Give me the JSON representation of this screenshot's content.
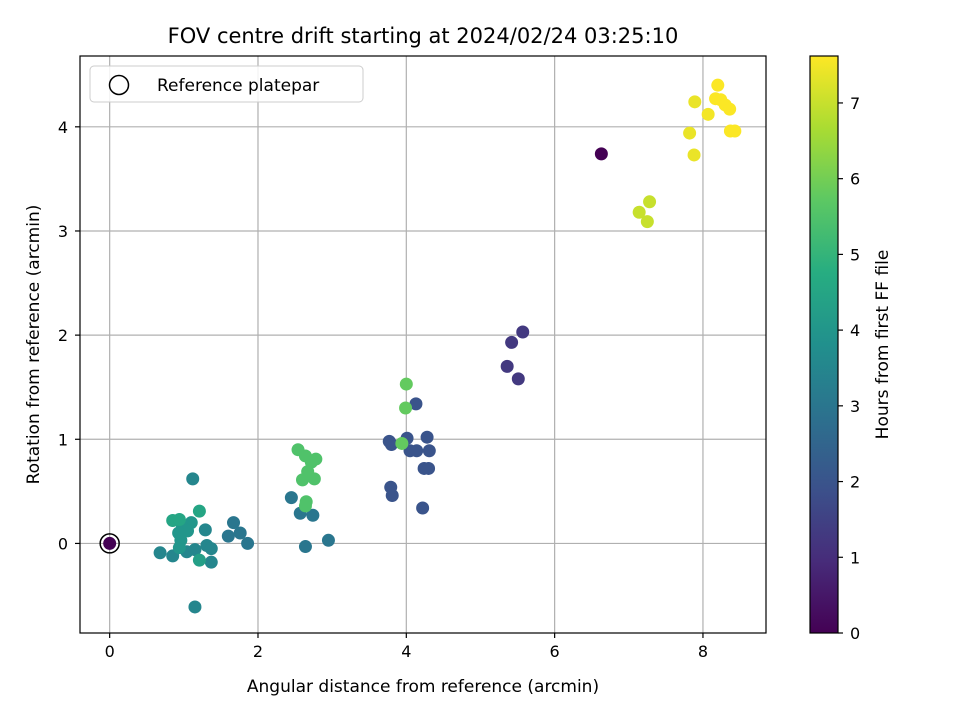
{
  "chart_data": {
    "type": "scatter",
    "title": "FOV centre drift starting at 2024/02/24 03:25:10",
    "xlabel": "Angular distance from reference (arcmin)",
    "ylabel": "Rotation from reference (arcmin)",
    "xlim": [
      -0.4,
      8.85
    ],
    "ylim": [
      -0.86,
      4.68
    ],
    "xticks": [
      0,
      2,
      4,
      6,
      8
    ],
    "yticks": [
      0,
      1,
      2,
      3,
      4
    ],
    "grid": true,
    "legend": {
      "position": "top-left",
      "entries": [
        "Reference platepar"
      ]
    },
    "colormap": "viridis",
    "colorbar": {
      "label": "Hours from first FF file",
      "range": [
        0,
        7.62
      ],
      "ticks": [
        0,
        1,
        2,
        3,
        4,
        5,
        6,
        7
      ]
    },
    "reference_point": {
      "x": 0,
      "y": 0,
      "label": "Reference platepar"
    },
    "points": [
      {
        "x": 0.0,
        "y": 0.0,
        "c": 0.0
      },
      {
        "x": 6.63,
        "y": 3.74,
        "c": 0.0
      },
      {
        "x": 5.57,
        "y": 2.03,
        "c": 1.3
      },
      {
        "x": 5.42,
        "y": 1.93,
        "c": 1.3
      },
      {
        "x": 5.36,
        "y": 1.7,
        "c": 1.3
      },
      {
        "x": 5.51,
        "y": 1.58,
        "c": 1.3
      },
      {
        "x": 4.13,
        "y": 1.34,
        "c": 2.0
      },
      {
        "x": 4.28,
        "y": 1.02,
        "c": 2.0
      },
      {
        "x": 4.01,
        "y": 1.01,
        "c": 2.0
      },
      {
        "x": 3.77,
        "y": 0.98,
        "c": 2.0
      },
      {
        "x": 3.8,
        "y": 0.95,
        "c": 2.0
      },
      {
        "x": 4.05,
        "y": 0.89,
        "c": 2.0
      },
      {
        "x": 4.14,
        "y": 0.89,
        "c": 2.0
      },
      {
        "x": 4.31,
        "y": 0.89,
        "c": 2.0
      },
      {
        "x": 4.24,
        "y": 0.72,
        "c": 2.0
      },
      {
        "x": 4.3,
        "y": 0.72,
        "c": 2.0
      },
      {
        "x": 3.79,
        "y": 0.54,
        "c": 2.0
      },
      {
        "x": 3.81,
        "y": 0.46,
        "c": 2.0
      },
      {
        "x": 4.22,
        "y": 0.34,
        "c": 2.0
      },
      {
        "x": 2.45,
        "y": 0.44,
        "c": 3.0
      },
      {
        "x": 2.57,
        "y": 0.29,
        "c": 3.0
      },
      {
        "x": 2.74,
        "y": 0.27,
        "c": 3.0
      },
      {
        "x": 2.64,
        "y": -0.03,
        "c": 3.0
      },
      {
        "x": 2.95,
        "y": 0.03,
        "c": 3.0
      },
      {
        "x": 1.67,
        "y": 0.2,
        "c": 3.0
      },
      {
        "x": 1.76,
        "y": 0.1,
        "c": 3.0
      },
      {
        "x": 1.6,
        "y": 0.07,
        "c": 3.0
      },
      {
        "x": 1.86,
        "y": 0.0,
        "c": 3.0
      },
      {
        "x": 1.12,
        "y": 0.62,
        "c": 3.5
      },
      {
        "x": 1.29,
        "y": 0.13,
        "c": 3.5
      },
      {
        "x": 0.68,
        "y": -0.09,
        "c": 3.5
      },
      {
        "x": 0.85,
        "y": -0.12,
        "c": 3.5
      },
      {
        "x": 1.04,
        "y": -0.08,
        "c": 3.5
      },
      {
        "x": 1.15,
        "y": -0.06,
        "c": 3.5
      },
      {
        "x": 1.31,
        "y": -0.02,
        "c": 3.5
      },
      {
        "x": 1.37,
        "y": -0.05,
        "c": 3.5
      },
      {
        "x": 1.37,
        "y": -0.18,
        "c": 3.5
      },
      {
        "x": 1.15,
        "y": -0.61,
        "c": 3.5
      },
      {
        "x": 1.1,
        "y": 0.2,
        "c": 4.0
      },
      {
        "x": 0.98,
        "y": 0.15,
        "c": 4.0
      },
      {
        "x": 1.05,
        "y": 0.12,
        "c": 4.0
      },
      {
        "x": 0.93,
        "y": 0.1,
        "c": 4.0
      },
      {
        "x": 0.96,
        "y": 0.03,
        "c": 4.0
      },
      {
        "x": 0.94,
        "y": -0.04,
        "c": 4.0
      },
      {
        "x": 1.21,
        "y": -0.16,
        "c": 4.3
      },
      {
        "x": 1.21,
        "y": 0.31,
        "c": 4.5
      },
      {
        "x": 0.85,
        "y": 0.22,
        "c": 4.5
      },
      {
        "x": 0.94,
        "y": 0.23,
        "c": 4.5
      },
      {
        "x": 2.54,
        "y": 0.9,
        "c": 5.5
      },
      {
        "x": 2.64,
        "y": 0.84,
        "c": 5.5
      },
      {
        "x": 2.72,
        "y": 0.78,
        "c": 5.5
      },
      {
        "x": 2.78,
        "y": 0.81,
        "c": 5.5
      },
      {
        "x": 2.67,
        "y": 0.69,
        "c": 5.5
      },
      {
        "x": 2.6,
        "y": 0.61,
        "c": 5.5
      },
      {
        "x": 2.76,
        "y": 0.62,
        "c": 5.5
      },
      {
        "x": 2.65,
        "y": 0.4,
        "c": 5.5
      },
      {
        "x": 2.64,
        "y": 0.36,
        "c": 5.5
      },
      {
        "x": 3.94,
        "y": 0.96,
        "c": 5.8
      },
      {
        "x": 3.99,
        "y": 1.3,
        "c": 5.8
      },
      {
        "x": 4.0,
        "y": 1.53,
        "c": 5.8
      },
      {
        "x": 7.14,
        "y": 3.18,
        "c": 7.0
      },
      {
        "x": 7.28,
        "y": 3.28,
        "c": 7.0
      },
      {
        "x": 7.25,
        "y": 3.09,
        "c": 7.0
      },
      {
        "x": 7.89,
        "y": 4.24,
        "c": 7.4
      },
      {
        "x": 7.82,
        "y": 3.94,
        "c": 7.4
      },
      {
        "x": 7.88,
        "y": 3.73,
        "c": 7.4
      },
      {
        "x": 8.07,
        "y": 4.12,
        "c": 7.5
      },
      {
        "x": 8.2,
        "y": 4.4,
        "c": 7.6
      },
      {
        "x": 8.17,
        "y": 4.27,
        "c": 7.6
      },
      {
        "x": 8.24,
        "y": 4.26,
        "c": 7.6
      },
      {
        "x": 8.3,
        "y": 4.21,
        "c": 7.6
      },
      {
        "x": 8.36,
        "y": 4.17,
        "c": 7.6
      },
      {
        "x": 8.37,
        "y": 3.96,
        "c": 7.6
      },
      {
        "x": 8.43,
        "y": 3.96,
        "c": 7.6
      }
    ]
  }
}
